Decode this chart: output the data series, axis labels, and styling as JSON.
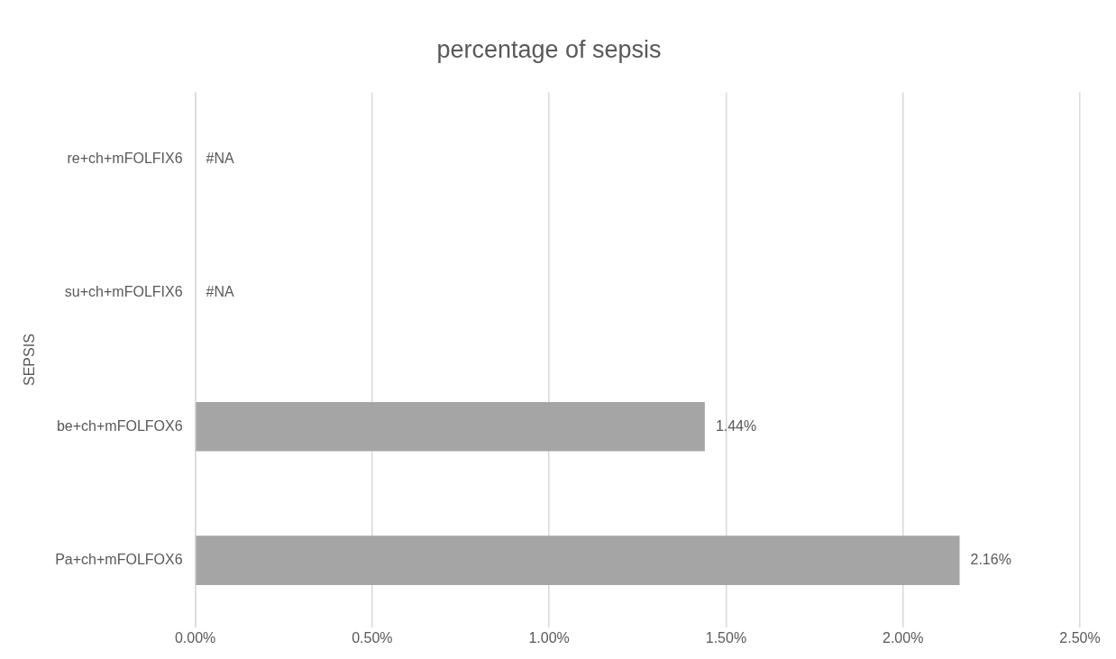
{
  "chart_data": {
    "type": "bar",
    "orientation": "horizontal",
    "title": "percentage of sepsis",
    "ylabel": "SEPSIS",
    "categories": [
      "re+ch+mFOLFIX6",
      "su+ch+mFOLFIX6",
      "be+ch+mFOLFOX6",
      "Pa+ch+mFOLFOX6"
    ],
    "values": [
      null,
      null,
      1.44,
      2.16
    ],
    "color": "#a5a5a5",
    "value_labels": [
      "#NA",
      "#NA",
      "1.44%",
      "2.16%"
    ],
    "xlim": [
      0,
      2.5
    ],
    "xticks": [
      {
        "value": 0,
        "label": "0.00%"
      },
      {
        "value": 0.5,
        "label": "0.50%"
      },
      {
        "value": 1,
        "label": "1.00%"
      },
      {
        "value": 1.5,
        "label": "1.50%"
      },
      {
        "value": 2,
        "label": "2.00%"
      },
      {
        "value": 2.5,
        "label": "2.50%"
      }
    ],
    "grid": "x",
    "legend": false
  }
}
